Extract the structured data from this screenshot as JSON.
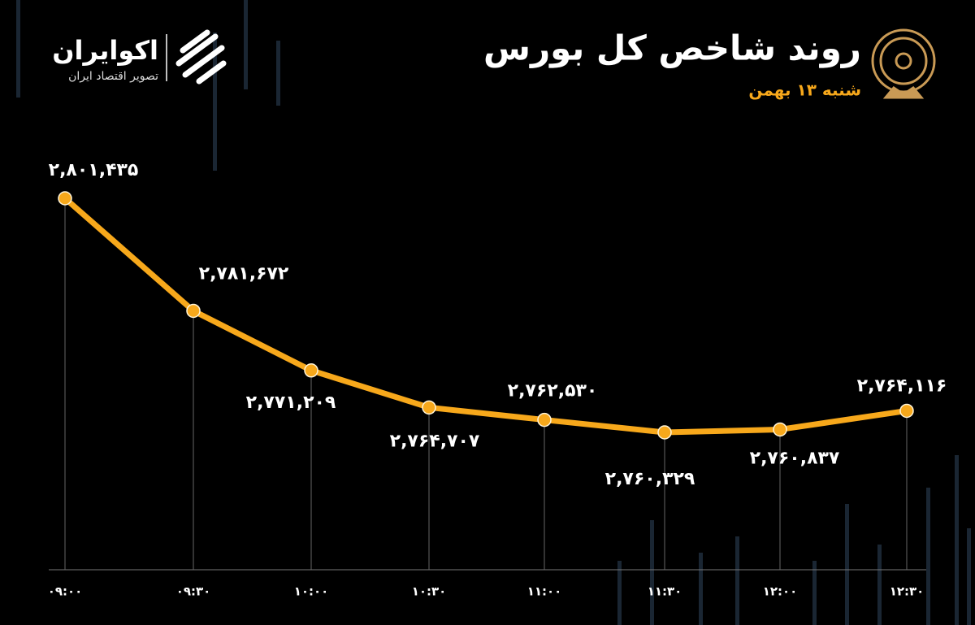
{
  "brand": {
    "name": "اکوایران",
    "tagline": "تصویر اقتصاد ایران"
  },
  "chart_data": {
    "type": "line",
    "title": "روند شاخص کل بورس",
    "subtitle": "شنبه ۱۳ بهمن",
    "categories": [
      "۰۹:۰۰",
      "۰۹:۳۰",
      "۱۰:۰۰",
      "۱۰:۳۰",
      "۱۱:۰۰",
      "۱۱:۳۰",
      "۱۲:۰۰",
      "۱۲:۳۰"
    ],
    "values": [
      2801435,
      2781672,
      2771209,
      2764707,
      2762530,
      2760329,
      2760837,
      2764116
    ],
    "value_labels": [
      "۲,۸۰۱,۴۳۵",
      "۲,۷۸۱,۶۷۲",
      "۲,۷۷۱,۲۰۹",
      "۲,۷۶۴,۷۰۷",
      "۲,۷۶۲,۵۳۰",
      "۲,۷۶۰,۳۲۹",
      "۲,۷۶۰,۸۳۷",
      "۲,۷۶۴,۱۱۶"
    ],
    "color": "#f7a81b"
  }
}
